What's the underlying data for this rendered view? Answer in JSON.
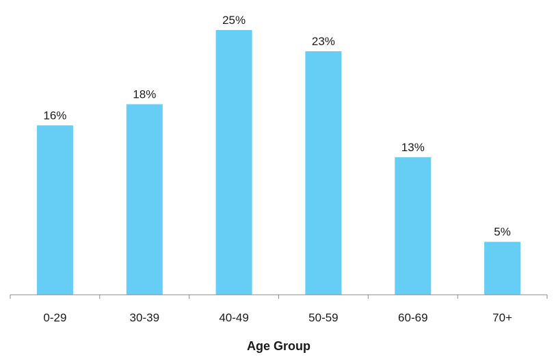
{
  "chart_data": {
    "type": "bar",
    "categories": [
      "0-29",
      "30-39",
      "40-49",
      "50-59",
      "60-69",
      "70+"
    ],
    "values": [
      16,
      18,
      25,
      23,
      13,
      5
    ],
    "data_labels": [
      "16%",
      "18%",
      "25%",
      "23%",
      "13%",
      "5%"
    ],
    "title": "",
    "xlabel": "Age Group",
    "ylabel": "",
    "ylim": [
      0,
      25
    ],
    "grid": false,
    "legend": "none",
    "bar_color": "#66CDF5",
    "axis_color": "#8c8c8c"
  }
}
